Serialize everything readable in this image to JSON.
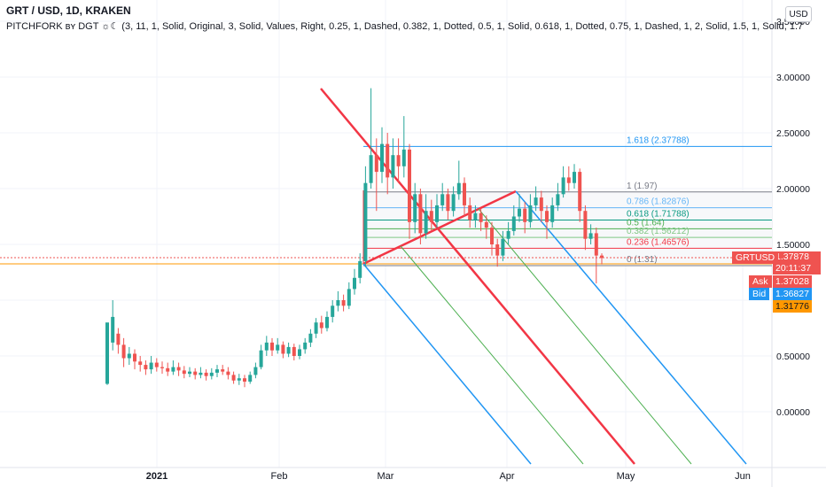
{
  "header": {
    "title": "GRT / USD, 1D, KRAKEN",
    "indicator": "PITCHFORK ʙʏ DGT ☼☾ (3, 11, 1, Solid, Original, 3, Solid, Values, Right, 0.25, 1, Dashed, 0.382, 1, Dotted, 0.5, 1, Solid, 0.618, 1, Dotted, 0.75, 1, Dashed, 1, 2, Solid, 1.5, 1, Solid, 1.7"
  },
  "currency_button": "USD",
  "price_axis": {
    "labels": [
      "3.50000",
      "3.00000",
      "2.50000",
      "2.00000",
      "1.50000",
      "1.00000",
      "0.50000",
      "0.00000"
    ]
  },
  "time_axis": {
    "labels": [
      "2021",
      "Feb",
      "Mar",
      "Apr",
      "May",
      "Jun"
    ]
  },
  "fib_levels": [
    {
      "label": "1.618 (2.37788)",
      "value": 2.37788,
      "color": "#2196f3"
    },
    {
      "label": "1 (1.97)",
      "value": 1.97,
      "color": "#787b86"
    },
    {
      "label": "0.786 (1.82876)",
      "value": 1.82876,
      "color": "#64b5f6"
    },
    {
      "label": "0.618 (1.71788)",
      "value": 1.71788,
      "color": "#089981"
    },
    {
      "label": "0.5 (1.64)",
      "value": 1.64,
      "color": "#4caf50"
    },
    {
      "label": "0.382 (1.56212)",
      "value": 1.56212,
      "color": "#81c784"
    },
    {
      "label": "0.236 (1.46576)",
      "value": 1.46576,
      "color": "#f23645"
    },
    {
      "label": "0 (1.31)",
      "value": 1.31,
      "color": "#787b86"
    }
  ],
  "price_tags": {
    "symbol": "GRTUSD",
    "last_price": "1.37878",
    "countdown": "20:11:37",
    "ask_label": "Ask",
    "ask_price": "1.37028",
    "bid_label": "Bid",
    "bid_price": "1.36827",
    "line_price": "1.31776"
  },
  "colors": {
    "up": "#26a69a",
    "down": "#ef5350",
    "pitchfork_median": "#f23645",
    "pitchfork_outer": "#2196f3",
    "pitchfork_inner": "#4caf50",
    "horizontal_line": "#ff9800",
    "ask": "#ef5350",
    "bid": "#2196f3"
  }
}
